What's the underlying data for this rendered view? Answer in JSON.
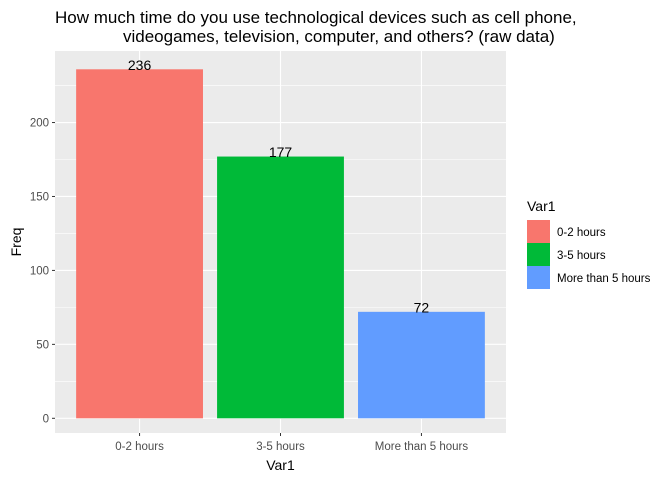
{
  "chart_data": {
    "type": "bar",
    "title_lines": [
      "How much time do you use technological devices such as cell phone,",
      "videogames, television, computer, and others? (raw data)"
    ],
    "xlabel": "Var1",
    "ylabel": "Freq",
    "categories": [
      "0-2 hours",
      "3-5 hours",
      "More than 5 hours"
    ],
    "values": [
      236,
      177,
      72
    ],
    "data_labels": [
      "236",
      "177",
      "72"
    ],
    "colors": [
      "#F8766D",
      "#00BA38",
      "#619CFF"
    ],
    "ylim": [
      0,
      248
    ],
    "yticks": [
      0,
      50,
      100,
      150,
      200
    ],
    "grid": true,
    "legend": {
      "title": "Var1",
      "position": "right",
      "entries": [
        "0-2 hours",
        "3-5 hours",
        "More than 5 hours"
      ]
    },
    "panel_background": "#EBEBEB"
  }
}
